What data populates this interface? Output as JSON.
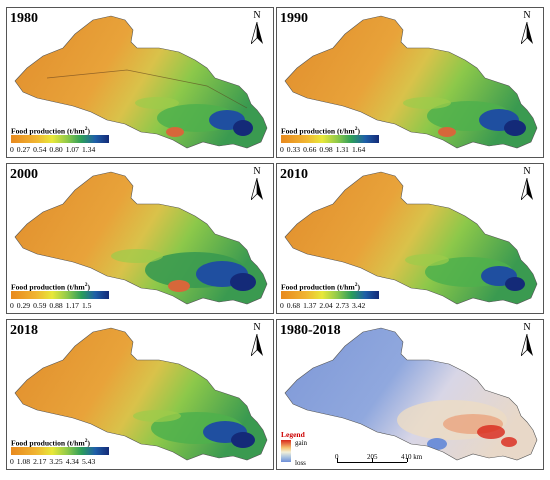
{
  "north_label": "N",
  "legend_title": "Food production (t/hm",
  "legend_unit_sup": "2",
  "legend_title_close": ")",
  "panels": [
    {
      "year": "1980",
      "ticks": [
        "0",
        "0.27",
        "0.54",
        "0.80",
        "1.07",
        "1.34"
      ]
    },
    {
      "year": "1990",
      "ticks": [
        "0",
        "0.33",
        "0.66",
        "0.98",
        "1.31",
        "1.64"
      ]
    },
    {
      "year": "2000",
      "ticks": [
        "0",
        "0.29",
        "0.59",
        "0.88",
        "1.17",
        "1.5"
      ]
    },
    {
      "year": "2010",
      "ticks": [
        "0",
        "0.68",
        "1.37",
        "2.04",
        "2.73",
        "3.42"
      ]
    },
    {
      "year": "2018",
      "ticks": [
        "0",
        "1.08",
        "2.17",
        "3.25",
        "4.34",
        "5.43"
      ]
    }
  ],
  "change_panel": {
    "title": "1980-2018",
    "legend_title": "Legend",
    "gain": "gain",
    "loss": "loss",
    "scale_ticks": [
      "0",
      "205",
      "410 km"
    ]
  },
  "colors": {
    "low": "#e8891e",
    "mid": "#e8e83a",
    "high": "#142a78",
    "gain": "#d9271a",
    "loss": "#6e8fd8"
  }
}
